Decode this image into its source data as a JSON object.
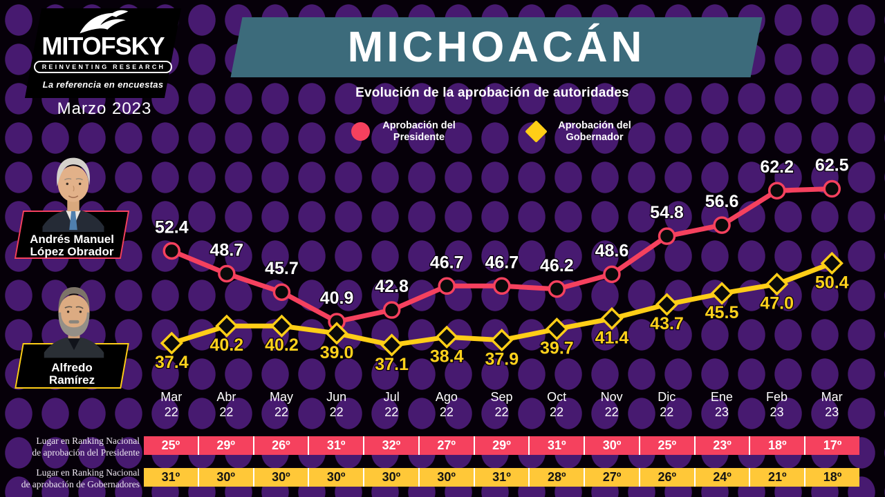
{
  "brand": {
    "logo_text": "MITOFSKY",
    "tagline": "REINVENTING RESEARCH",
    "slogan": "La referencia en encuestas",
    "date": "Marzo 2023"
  },
  "header": {
    "title": "MICHOACÁN",
    "subtitle": "Evolución de la aprobación de autoridades"
  },
  "legend": {
    "president_line1": "Aprobación del",
    "president_line2": "Presidente",
    "governor_line1": "Aprobación del",
    "governor_line2": "Gobernador"
  },
  "people": {
    "president": {
      "line1": "Andrés Manuel",
      "line2": "López Obrador"
    },
    "governor": {
      "line1": "Alfredo",
      "line2": "Ramírez"
    }
  },
  "colors": {
    "president_red": "#f5415e",
    "governor_yellow": "#ffce17",
    "governor_row_yellow": "#ffc838",
    "banner_teal": "#3c6b7b",
    "background_dot_purple": "#471a70"
  },
  "chart_data": {
    "type": "line",
    "title": "Evolución de la aprobación de autoridades",
    "categories": [
      "Mar 22",
      "Abr 22",
      "May 22",
      "Jun 22",
      "Jul 22",
      "Ago 22",
      "Sep 22",
      "Oct 22",
      "Nov 22",
      "Dic 22",
      "Ene 23",
      "Feb 23",
      "Mar 23"
    ],
    "series": [
      {
        "name": "Aprobación del Presidente",
        "marker": "circle",
        "color": "#f5415e",
        "label_color": "#ffffff",
        "values": [
          52.4,
          48.7,
          45.7,
          40.9,
          42.8,
          46.7,
          46.7,
          46.2,
          48.6,
          54.8,
          56.6,
          62.2,
          62.5
        ]
      },
      {
        "name": "Aprobación del Gobernador",
        "marker": "diamond",
        "color": "#ffce17",
        "label_color": "#ffd21c",
        "values": [
          37.4,
          40.2,
          40.2,
          39.0,
          37.1,
          38.4,
          37.9,
          39.7,
          41.4,
          43.7,
          45.5,
          47.0,
          50.4
        ]
      }
    ],
    "ylim": [
      35,
      65
    ],
    "grid": false,
    "legend_position": "top",
    "rankings": [
      {
        "label_line1": "Lugar en Ranking Nacional",
        "label_line2": "de aprobación del Presidente",
        "color": "#f5415e",
        "text_color": "#ffffff",
        "values": [
          "25º",
          "29º",
          "26º",
          "31º",
          "32º",
          "27º",
          "29º",
          "31º",
          "30º",
          "25º",
          "23º",
          "18º",
          "17º"
        ]
      },
      {
        "label_line1": "Lugar en Ranking Nacional",
        "label_line2": "de aprobación de Gobernadores",
        "color": "#ffc838",
        "text_color": "#141414",
        "values": [
          "31º",
          "30º",
          "30º",
          "30º",
          "30º",
          "30º",
          "31º",
          "28º",
          "27º",
          "26º",
          "24º",
          "21º",
          "18º"
        ]
      }
    ]
  }
}
